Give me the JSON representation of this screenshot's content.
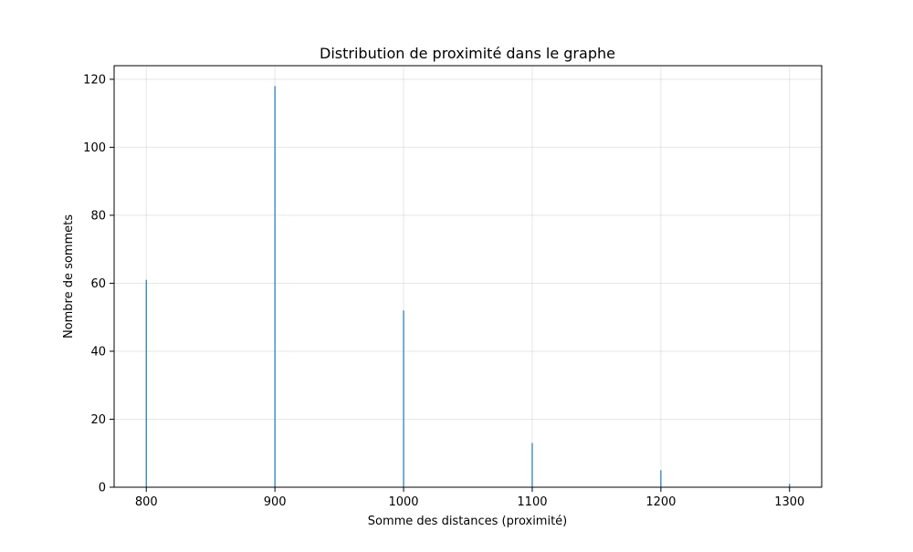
{
  "chart_data": {
    "type": "bar",
    "title": "Distribution de proximité dans le graphe",
    "xlabel": "Somme des distances (proximité)",
    "ylabel": "Nombre de sommets",
    "x": [
      800,
      900,
      1000,
      1100,
      1200,
      1300
    ],
    "values": [
      61,
      118,
      52,
      13,
      5,
      1
    ],
    "xlim": [
      775,
      1325
    ],
    "ylim": [
      0,
      124
    ],
    "xticks": [
      800,
      900,
      1000,
      1100,
      1200,
      1300
    ],
    "yticks": [
      0,
      20,
      40,
      60,
      80,
      100,
      120
    ],
    "grid": true,
    "color": "#1f77b4"
  }
}
